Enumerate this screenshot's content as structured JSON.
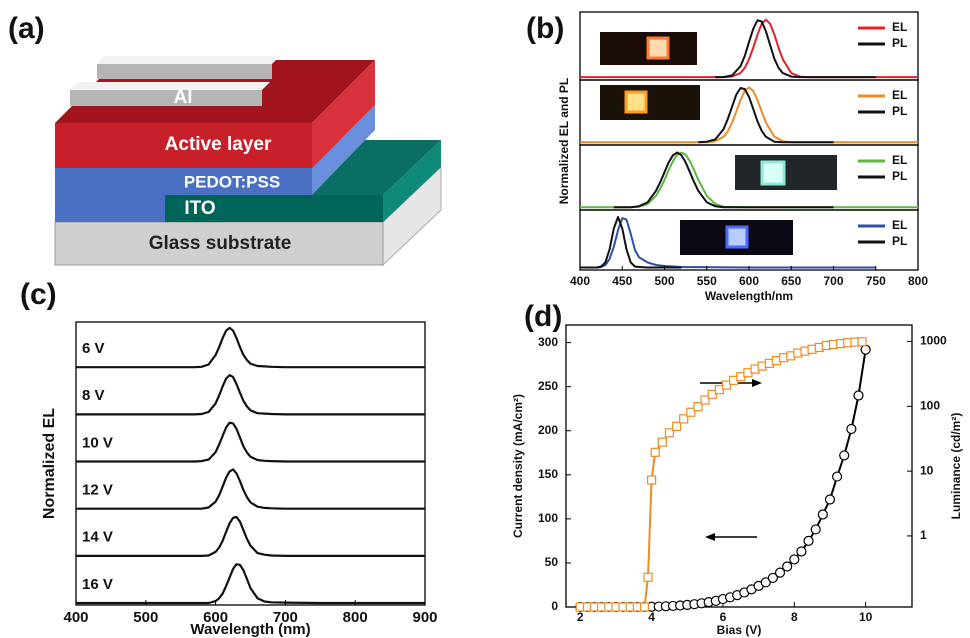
{
  "panel_labels": [
    "(a)",
    "(b)",
    "(c)",
    "(d)"
  ],
  "diagram": {
    "layers": [
      "Al",
      "Active layer",
      "PEDOT:PSS",
      "ITO",
      "Glass substrate"
    ]
  },
  "chart_data": [
    {
      "type": "line",
      "ylabel": "Normalized EL and PL",
      "ylim": [
        -0.05,
        1.1
      ],
      "x": [
        400,
        560,
        570,
        580,
        590,
        595,
        600,
        605,
        610,
        615,
        620,
        625,
        630,
        635,
        640,
        650,
        660,
        670,
        680,
        750,
        800
      ],
      "series": [
        {
          "name": "EL",
          "color": "#e8202a",
          "values": [
            0,
            0,
            0,
            0.01,
            0.07,
            0.16,
            0.31,
            0.51,
            0.74,
            0.93,
            1,
            0.93,
            0.74,
            0.51,
            0.31,
            0.07,
            0.01,
            0,
            0,
            0,
            0
          ]
        },
        {
          "name": "PL",
          "color": "#111111",
          "values": [
            null,
            0,
            0,
            0.03,
            0.19,
            0.37,
            0.61,
            0.84,
            0.99,
            0.97,
            0.8,
            0.56,
            0.32,
            0.16,
            0.07,
            0.01,
            0,
            0,
            0,
            0,
            null
          ]
        }
      ]
    },
    {
      "type": "line",
      "ylim": [
        -0.05,
        1.1
      ],
      "x": [
        400,
        540,
        550,
        560,
        570,
        575,
        580,
        585,
        590,
        595,
        600,
        605,
        610,
        615,
        620,
        630,
        640,
        650,
        660,
        700,
        800
      ],
      "series": [
        {
          "name": "EL",
          "color": "#f08a24",
          "values": [
            0,
            0,
            0,
            0.02,
            0.1,
            0.2,
            0.36,
            0.56,
            0.77,
            0.94,
            1,
            0.94,
            0.77,
            0.56,
            0.36,
            0.1,
            0.02,
            0,
            0,
            0,
            0
          ]
        },
        {
          "name": "PL",
          "color": "#111111",
          "values": [
            null,
            0,
            0.01,
            0.05,
            0.24,
            0.43,
            0.65,
            0.87,
            0.99,
            0.97,
            0.83,
            0.61,
            0.38,
            0.21,
            0.1,
            0.01,
            0,
            0,
            0,
            0,
            null
          ]
        }
      ]
    },
    {
      "type": "line",
      "ylim": [
        -0.05,
        1.1
      ],
      "x": [
        400,
        440,
        460,
        470,
        480,
        490,
        495,
        500,
        505,
        510,
        515,
        520,
        525,
        530,
        535,
        540,
        550,
        560,
        570,
        600,
        700,
        800
      ],
      "series": [
        {
          "name": "EL",
          "color": "#5db840",
          "values": [
            0,
            0,
            0,
            0.01,
            0.06,
            0.21,
            0.34,
            0.5,
            0.68,
            0.84,
            0.96,
            1,
            0.96,
            0.84,
            0.68,
            0.5,
            0.21,
            0.06,
            0.01,
            0,
            0,
            0
          ]
        },
        {
          "name": "PL",
          "color": "#111111",
          "values": [
            null,
            0,
            0,
            0.02,
            0.09,
            0.3,
            0.46,
            0.64,
            0.82,
            0.95,
            1,
            0.95,
            0.82,
            0.64,
            0.46,
            0.3,
            0.09,
            0.02,
            0,
            0,
            0,
            null
          ]
        }
      ]
    },
    {
      "type": "line",
      "ylim": [
        -0.05,
        1.1
      ],
      "xlabel": "Wavelength/nm",
      "xlim": [
        400,
        800
      ],
      "xticks": [
        400,
        450,
        500,
        550,
        600,
        650,
        700,
        750,
        800
      ],
      "x": [
        400,
        410,
        420,
        425,
        430,
        435,
        440,
        445,
        450,
        455,
        460,
        465,
        470,
        480,
        490,
        500,
        520,
        600,
        750
      ],
      "series": [
        {
          "name": "EL",
          "color": "#2d4fa8",
          "values": [
            0,
            0,
            0,
            0.01,
            0.05,
            0.17,
            0.41,
            0.74,
            0.98,
            0.95,
            0.67,
            0.35,
            0.2,
            0.1,
            0.05,
            0.03,
            0.01,
            0,
            0
          ]
        },
        {
          "name": "PL",
          "color": "#111111",
          "values": [
            0,
            0,
            0,
            0.02,
            0.1,
            0.36,
            0.77,
            1,
            0.77,
            0.36,
            0.1,
            0.02,
            0.01,
            0,
            0,
            0,
            0,
            null,
            null
          ]
        }
      ]
    },
    {
      "type": "line",
      "xlabel": "Wavelength (nm)",
      "ylabel": "Normalized EL",
      "xlim": [
        400,
        900
      ],
      "xticks": [
        400,
        500,
        600,
        700,
        800,
        900
      ],
      "ylim": [
        -0.05,
        1.1
      ],
      "x": [
        400,
        550,
        570,
        580,
        590,
        600,
        605,
        610,
        615,
        620,
        625,
        630,
        635,
        640,
        645,
        650,
        660,
        670,
        680,
        700,
        750,
        900
      ],
      "series": [
        {
          "name": "6 V",
          "color": "#111111",
          "values": [
            0,
            0,
            0,
            0.01,
            0.07,
            0.31,
            0.51,
            0.74,
            0.93,
            1,
            0.93,
            0.74,
            0.51,
            0.31,
            0.18,
            0.09,
            0.03,
            0.02,
            0.01,
            0,
            0,
            0
          ]
        },
        {
          "name": "8 V",
          "color": "#111111",
          "values": [
            0,
            0,
            0,
            0.01,
            0.06,
            0.28,
            0.48,
            0.71,
            0.91,
            1,
            0.95,
            0.77,
            0.55,
            0.34,
            0.2,
            0.1,
            0.03,
            0.02,
            0.01,
            0,
            0,
            0
          ]
        },
        {
          "name": "10 V",
          "color": "#111111",
          "values": [
            0,
            0,
            0,
            0.01,
            0.05,
            0.24,
            0.43,
            0.65,
            0.87,
            0.99,
            0.97,
            0.83,
            0.61,
            0.38,
            0.23,
            0.12,
            0.04,
            0.02,
            0.01,
            0,
            0,
            0
          ]
        },
        {
          "name": "12 V",
          "color": "#111111",
          "values": [
            0,
            0,
            0,
            0,
            0.03,
            0.18,
            0.34,
            0.56,
            0.79,
            0.95,
            1,
            0.9,
            0.7,
            0.47,
            0.29,
            0.16,
            0.05,
            0.02,
            0.01,
            0,
            0,
            0
          ]
        },
        {
          "name": "14 V",
          "color": "#111111",
          "values": [
            0,
            0,
            0,
            0,
            0.01,
            0.1,
            0.21,
            0.38,
            0.61,
            0.83,
            0.97,
            0.99,
            0.87,
            0.65,
            0.43,
            0.26,
            0.07,
            0.03,
            0.01,
            0,
            0,
            0
          ]
        },
        {
          "name": "16 V",
          "color": "#111111",
          "values": [
            0,
            0,
            0,
            0,
            0,
            0.05,
            0.12,
            0.24,
            0.43,
            0.65,
            0.87,
            0.99,
            0.97,
            0.83,
            0.61,
            0.38,
            0.12,
            0.04,
            0.02,
            0.01,
            0,
            0
          ]
        }
      ]
    },
    {
      "type": "line",
      "xlabel": "Bias (V)",
      "ylabel": "Current density (mA/cm²)",
      "y2label": "Luminance (cd/m²)",
      "xlim": [
        1.6,
        11.3
      ],
      "xticks": [
        2,
        4,
        6,
        8,
        10
      ],
      "ylim": [
        0,
        320
      ],
      "yticks": [
        0,
        50,
        100,
        150,
        200,
        250,
        300
      ],
      "y2lim": [
        0.08,
        1800
      ],
      "y2ticks": [
        1,
        10,
        100,
        1000
      ],
      "y2scale": "log",
      "series": [
        {
          "color": "#000000",
          "marker": "circle",
          "x": [
            2,
            2.2,
            2.4,
            2.6,
            2.8,
            3,
            3.2,
            3.4,
            3.6,
            3.8,
            4,
            4.2,
            4.4,
            4.6,
            4.8,
            5,
            5.2,
            5.4,
            5.6,
            5.8,
            6,
            6.2,
            6.4,
            6.6,
            6.8,
            7,
            7.2,
            7.4,
            7.6,
            7.8,
            8,
            8.2,
            8.4,
            8.6,
            8.8,
            9,
            9.2,
            9.4,
            9.6,
            9.8,
            10
          ],
          "values": [
            0,
            0,
            0,
            0,
            0,
            0,
            0,
            0,
            0,
            0,
            0.3,
            0.5,
            0.8,
            1.2,
            1.7,
            2.4,
            3.2,
            4.2,
            5.5,
            7,
            9,
            11,
            13.5,
            16.5,
            20,
            24,
            28,
            33,
            39,
            46,
            54,
            63,
            75,
            88,
            105,
            122,
            148,
            172,
            202,
            240,
            292
          ]
        },
        {
          "color": "#f08a24",
          "marker": "square",
          "axis": "y2",
          "x": [
            2,
            2.2,
            2.4,
            2.6,
            2.8,
            3,
            3.2,
            3.4,
            3.6,
            3.8,
            3.9,
            4,
            4.1,
            4.3,
            4.5,
            4.7,
            4.9,
            5.1,
            5.3,
            5.5,
            5.7,
            5.9,
            6.1,
            6.3,
            6.5,
            6.7,
            6.9,
            7.1,
            7.3,
            7.5,
            7.7,
            7.9,
            8.1,
            8.3,
            8.5,
            8.7,
            8.9,
            9.1,
            9.3,
            9.5,
            9.7,
            9.9
          ],
          "values": [
            0.08,
            0.08,
            0.08,
            0.08,
            0.08,
            0.08,
            0.08,
            0.08,
            0.08,
            0.08,
            0.23,
            7.3,
            19.5,
            28,
            39,
            49,
            64,
            81,
            99,
            125,
            153,
            181,
            213,
            252,
            288,
            330,
            376,
            417,
            460,
            508,
            563,
            601,
            665,
            711,
            759,
            812,
            868,
            899,
            929,
            959,
            980,
            993
          ]
        }
      ]
    }
  ]
}
